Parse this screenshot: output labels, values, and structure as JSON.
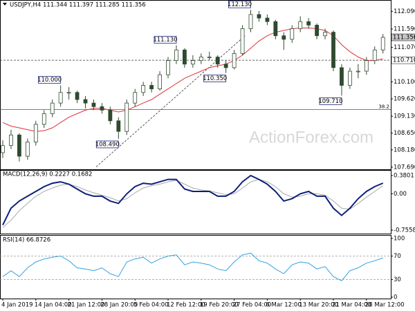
{
  "chart_data": [
    {
      "type": "candlestick",
      "title": "USDJPY,H4 111.344 111.397 111.285 111.356",
      "watermark": "ActionForex.com",
      "categories": [
        "4 Jan 2019",
        null,
        null,
        null,
        "14 Jan 04:00",
        null,
        null,
        null,
        "21 Jan 12:00",
        null,
        null,
        null,
        "28 Jan 20:00",
        null,
        null,
        null,
        "5 Feb 04:00",
        null,
        null,
        null,
        "12 Feb 12:00",
        null,
        null,
        null,
        "19 Feb 20:00",
        null,
        null,
        null,
        "27 Feb 04:00",
        null,
        null,
        null,
        "6 Mar 12:00",
        null,
        null,
        null,
        "13 Mar 20:00",
        null,
        null,
        null,
        "21 Mar 04:00",
        null,
        null,
        null,
        "28 Mar 12:00",
        null,
        null
      ],
      "open": [
        108.1,
        108.3,
        108.6,
        108.0,
        108.4,
        108.9,
        109.2,
        109.5,
        109.8,
        109.8,
        109.6,
        109.5,
        109.4,
        109.3,
        109.0,
        108.7,
        109.5,
        109.8,
        110.0,
        109.9,
        110.3,
        110.7,
        111.0,
        110.6,
        110.7,
        110.8,
        110.8,
        110.6,
        110.5,
        110.9,
        111.6,
        112.0,
        111.9,
        111.8,
        111.4,
        111.3,
        111.6,
        111.8,
        111.7,
        111.4,
        111.5,
        110.5,
        110.0,
        110.4,
        110.4,
        110.7,
        111.0
      ],
      "high": [
        108.45,
        108.75,
        108.65,
        108.5,
        109.0,
        109.3,
        109.6,
        110.0,
        109.95,
        109.85,
        109.7,
        109.6,
        109.5,
        109.4,
        109.1,
        109.6,
        109.9,
        110.1,
        110.1,
        110.4,
        110.8,
        111.13,
        111.05,
        110.85,
        110.9,
        110.95,
        110.85,
        110.7,
        111.0,
        111.7,
        112.13,
        112.1,
        112.0,
        111.85,
        111.5,
        111.7,
        111.95,
        111.9,
        111.75,
        111.6,
        111.55,
        110.6,
        110.5,
        110.6,
        110.8,
        111.1,
        111.45
      ],
      "low": [
        107.95,
        108.2,
        107.85,
        107.9,
        108.3,
        108.8,
        109.1,
        109.4,
        109.6,
        109.5,
        109.35,
        109.3,
        109.2,
        108.9,
        108.49,
        108.6,
        109.4,
        109.7,
        109.8,
        109.85,
        110.2,
        110.6,
        110.5,
        110.5,
        110.6,
        110.7,
        110.5,
        110.35,
        110.45,
        110.85,
        111.5,
        111.8,
        111.7,
        111.3,
        111.0,
        111.2,
        111.5,
        111.6,
        111.3,
        111.3,
        110.4,
        109.71,
        109.9,
        110.2,
        110.3,
        110.6,
        110.9
      ],
      "close": [
        108.3,
        108.6,
        108.0,
        108.4,
        108.9,
        109.2,
        109.5,
        109.8,
        109.8,
        109.6,
        109.5,
        109.4,
        109.3,
        109.0,
        108.7,
        109.5,
        109.8,
        110.0,
        109.9,
        110.3,
        110.7,
        111.0,
        110.6,
        110.7,
        110.8,
        110.8,
        110.6,
        110.5,
        110.9,
        111.6,
        112.0,
        111.9,
        111.8,
        111.4,
        111.3,
        111.6,
        111.8,
        111.7,
        111.4,
        111.5,
        110.5,
        110.0,
        110.4,
        110.4,
        110.7,
        111.0,
        111.356
      ],
      "color": "#2f4a2f",
      "overlay_line": {
        "color": "#e0303a",
        "values": [
          108.95,
          108.85,
          108.8,
          108.75,
          108.7,
          108.72,
          108.8,
          108.95,
          109.1,
          109.2,
          109.3,
          109.35,
          109.35,
          109.3,
          109.25,
          109.3,
          109.4,
          109.5,
          109.6,
          109.75,
          109.9,
          110.05,
          110.2,
          110.3,
          110.4,
          110.5,
          110.55,
          110.6,
          110.7,
          110.85,
          111.05,
          111.25,
          111.4,
          111.5,
          111.55,
          111.6,
          111.62,
          111.62,
          111.6,
          111.55,
          111.4,
          111.15,
          110.95,
          110.8,
          110.7,
          110.7,
          110.75
        ]
      },
      "annotations": [
        {
          "value": 110.0,
          "label": "110.000",
          "index": 7
        },
        {
          "value": 108.49,
          "label": "108.490",
          "index": 14
        },
        {
          "value": 111.13,
          "label": "111.130",
          "index": 21
        },
        {
          "value": 110.35,
          "label": "110.350",
          "index": 27
        },
        {
          "value": 112.13,
          "label": "112.130",
          "index": 30
        },
        {
          "value": 109.71,
          "label": "109.710",
          "index": 41
        }
      ],
      "level": {
        "value": 110.71,
        "label": "110.710"
      },
      "last_price": {
        "value": 111.356,
        "label": "111.356"
      },
      "fib_level": {
        "value": 109.32,
        "label": "38.2"
      },
      "trendline": {
        "x": [
          11.3,
          29.3
        ],
        "y": [
          107.7,
          111.4
        ]
      },
      "ylim": [
        107.63,
        112.39
      ],
      "yticks": [
        {
          "value": 112.09,
          "label": "112.090"
        },
        {
          "value": 111.59,
          "label": "111.590"
        },
        {
          "value": 111.07,
          "label": "111.070"
        },
        {
          "value": 110.1,
          "label": "110.100"
        },
        {
          "value": 109.62,
          "label": "109.620"
        },
        {
          "value": 109.13,
          "label": "109.130"
        },
        {
          "value": 108.65,
          "label": "108.650"
        },
        {
          "value": 108.18,
          "label": "108.180"
        },
        {
          "value": 107.69,
          "label": "107.690"
        }
      ]
    },
    {
      "type": "line",
      "title": "MACD(12,26,9) 0.2227 0.1682",
      "series": [
        {
          "color": "#0b1f7a",
          "values": [
            -0.65,
            -0.3,
            -0.15,
            -0.05,
            0.05,
            0.15,
            0.22,
            0.25,
            0.2,
            0.1,
            0.0,
            -0.05,
            -0.05,
            -0.15,
            -0.2,
            0.0,
            0.15,
            0.22,
            0.2,
            0.25,
            0.3,
            0.3,
            0.1,
            0.05,
            0.05,
            0.05,
            -0.05,
            -0.05,
            0.05,
            0.25,
            0.38,
            0.3,
            0.2,
            0.05,
            -0.15,
            -0.1,
            0.0,
            0.05,
            -0.05,
            -0.05,
            -0.3,
            -0.45,
            -0.3,
            -0.1,
            0.05,
            0.15,
            0.2227
          ]
        },
        {
          "color": "#a8a8a8",
          "values": [
            -0.7,
            -0.55,
            -0.35,
            -0.2,
            -0.05,
            0.05,
            0.12,
            0.18,
            0.2,
            0.15,
            0.08,
            0.02,
            -0.03,
            -0.08,
            -0.15,
            -0.1,
            0.02,
            0.12,
            0.17,
            0.2,
            0.25,
            0.28,
            0.2,
            0.12,
            0.08,
            0.06,
            0.02,
            -0.02,
            0.0,
            0.12,
            0.25,
            0.3,
            0.25,
            0.15,
            0.0,
            -0.07,
            -0.05,
            0.0,
            0.0,
            -0.03,
            -0.15,
            -0.3,
            -0.32,
            -0.2,
            -0.07,
            0.05,
            0.1682
          ]
        }
      ],
      "ylim": [
        -0.828,
        0.481
      ],
      "yticks": [
        0.3801,
        {
          "value": 0,
          "label": "0.00"
        },
        -0.7558
      ]
    },
    {
      "type": "line",
      "title": "RSI(14) 66.8726",
      "series": [
        {
          "color": "#33a0e0",
          "values": [
            35,
            45,
            35,
            50,
            60,
            65,
            68,
            70,
            62,
            50,
            48,
            45,
            50,
            40,
            35,
            60,
            65,
            68,
            58,
            65,
            70,
            72,
            55,
            60,
            58,
            55,
            48,
            45,
            60,
            72,
            75,
            62,
            58,
            48,
            40,
            55,
            60,
            58,
            48,
            52,
            35,
            28,
            45,
            50,
            58,
            62,
            66.8726
          ]
        }
      ],
      "levels": [
        70,
        30
      ],
      "ylim": [
        -2.4,
        104.7
      ],
      "yticks": [
        100,
        70,
        30,
        0
      ]
    }
  ]
}
